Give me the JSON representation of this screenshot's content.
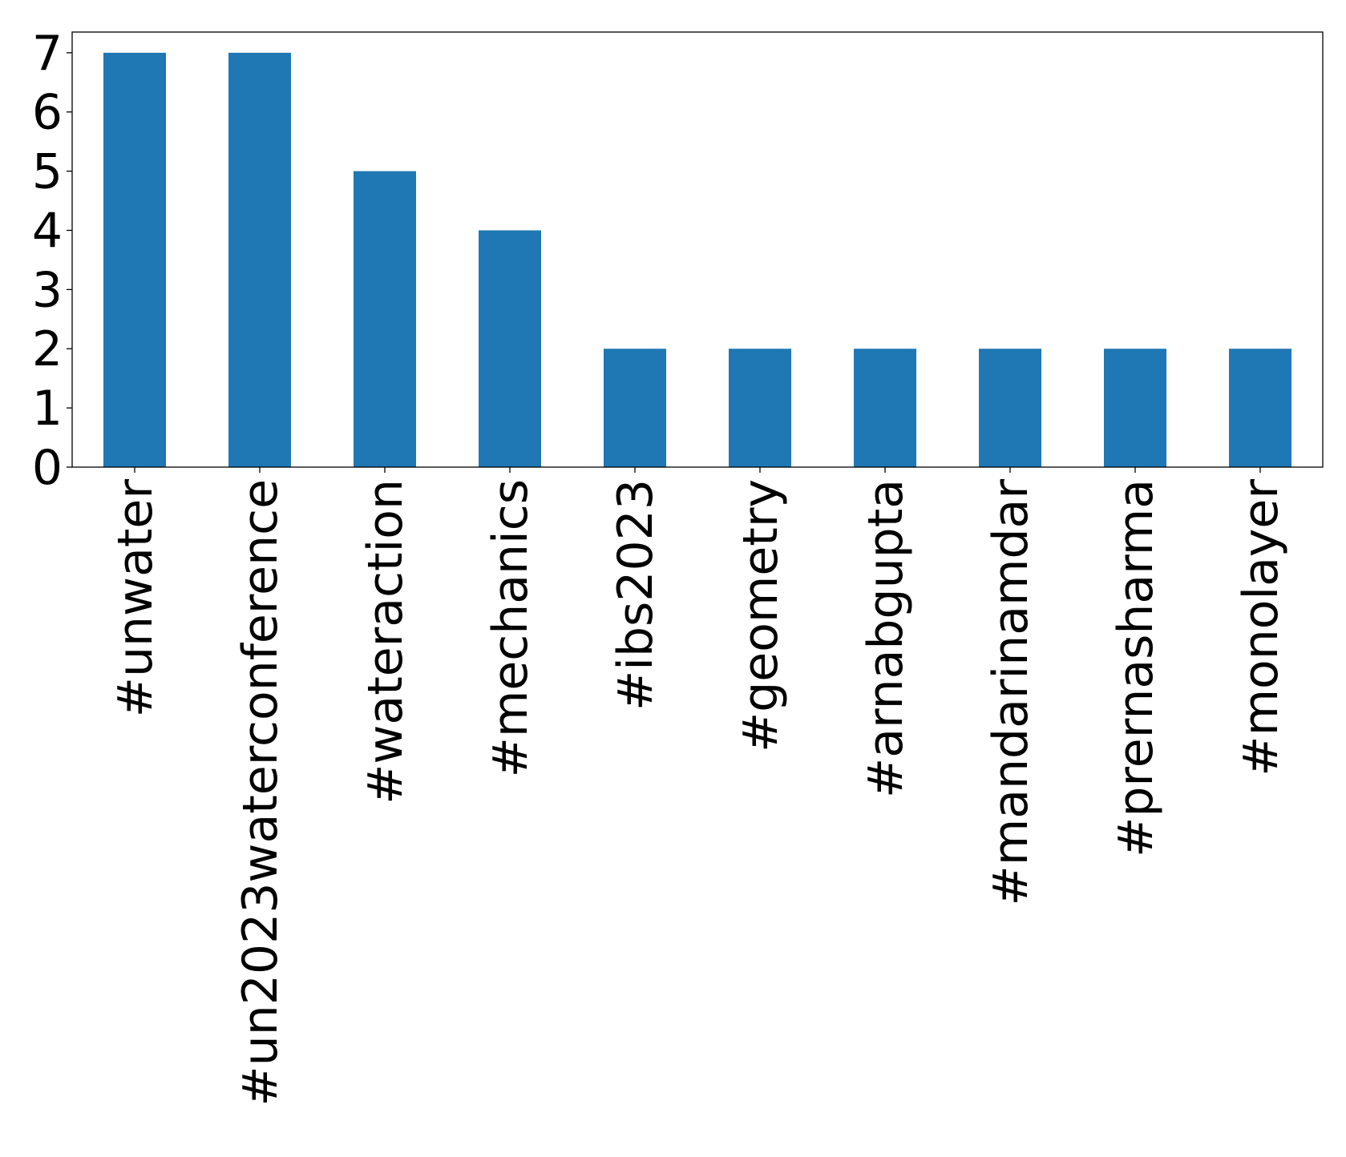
{
  "chart_data": {
    "type": "bar",
    "categories": [
      "#unwater",
      "#un2023waterconference",
      "#wateraction",
      "#mechanics",
      "#ibs2023",
      "#geometry",
      "#arnabgupta",
      "#mandarinamdar",
      "#prernasharma",
      "#monolayer"
    ],
    "values": [
      7,
      7,
      5,
      4,
      2,
      2,
      2,
      2,
      2,
      2
    ],
    "title": "",
    "xlabel": "",
    "ylabel": "",
    "ylim": [
      0,
      7.35
    ],
    "yticks": [
      0,
      1,
      2,
      3,
      4,
      5,
      6,
      7
    ],
    "grid": false,
    "legend": "none",
    "bar_color": "#1f77b4"
  }
}
